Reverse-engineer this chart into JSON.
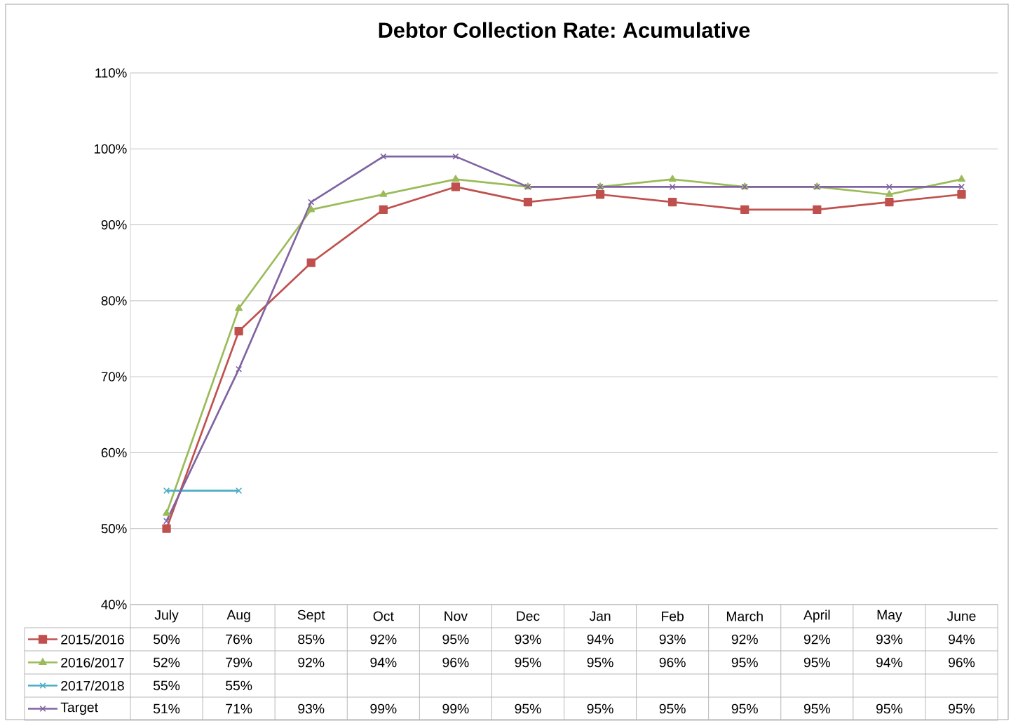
{
  "chart_data": {
    "type": "line",
    "title": "Debtor Collection Rate: Acumulative",
    "categories": [
      "July",
      "Aug",
      "Sept",
      "Oct",
      "Nov",
      "Dec",
      "Jan",
      "Feb",
      "March",
      "April",
      "May",
      "June"
    ],
    "series": [
      {
        "name": "2015/2016",
        "color": "#c0504d",
        "marker": "square",
        "values": [
          50,
          76,
          85,
          92,
          95,
          93,
          94,
          93,
          92,
          92,
          93,
          94
        ],
        "value_labels": [
          "50%",
          "76%",
          "85%",
          "92%",
          "95%",
          "93%",
          "94%",
          "93%",
          "92%",
          "92%",
          "93%",
          "94%"
        ]
      },
      {
        "name": "2016/2017",
        "color": "#9bbb59",
        "marker": "triangle",
        "values": [
          52,
          79,
          92,
          94,
          96,
          95,
          95,
          96,
          95,
          95,
          94,
          96
        ],
        "value_labels": [
          "52%",
          "79%",
          "92%",
          "94%",
          "96%",
          "95%",
          "95%",
          "96%",
          "95%",
          "95%",
          "94%",
          "96%"
        ]
      },
      {
        "name": "2017/2018",
        "color": "#4bacc6",
        "marker": "cross",
        "values": [
          55,
          55,
          null,
          null,
          null,
          null,
          null,
          null,
          null,
          null,
          null,
          null
        ],
        "value_labels": [
          "55%",
          "55%",
          null,
          null,
          null,
          null,
          null,
          null,
          null,
          null,
          null,
          null
        ]
      },
      {
        "name": "Target",
        "color": "#8064a2",
        "marker": "cross",
        "values": [
          51,
          71,
          93,
          99,
          99,
          95,
          95,
          95,
          95,
          95,
          95,
          95
        ],
        "value_labels": [
          "51%",
          "71%",
          "93%",
          "99%",
          "99%",
          "95%",
          "95%",
          "95%",
          "95%",
          "95%",
          "95%",
          "95%"
        ]
      }
    ],
    "ylim": [
      40,
      110
    ],
    "yticks": [
      {
        "value": 40,
        "label": "40%"
      },
      {
        "value": 50,
        "label": "50%"
      },
      {
        "value": 60,
        "label": "60%"
      },
      {
        "value": 70,
        "label": "70%"
      },
      {
        "value": 80,
        "label": "80%"
      },
      {
        "value": 90,
        "label": "90%"
      },
      {
        "value": 100,
        "label": "100%"
      },
      {
        "value": 110,
        "label": "110%"
      }
    ],
    "grid": "y",
    "legend": "bottom",
    "line_style": "solid"
  }
}
